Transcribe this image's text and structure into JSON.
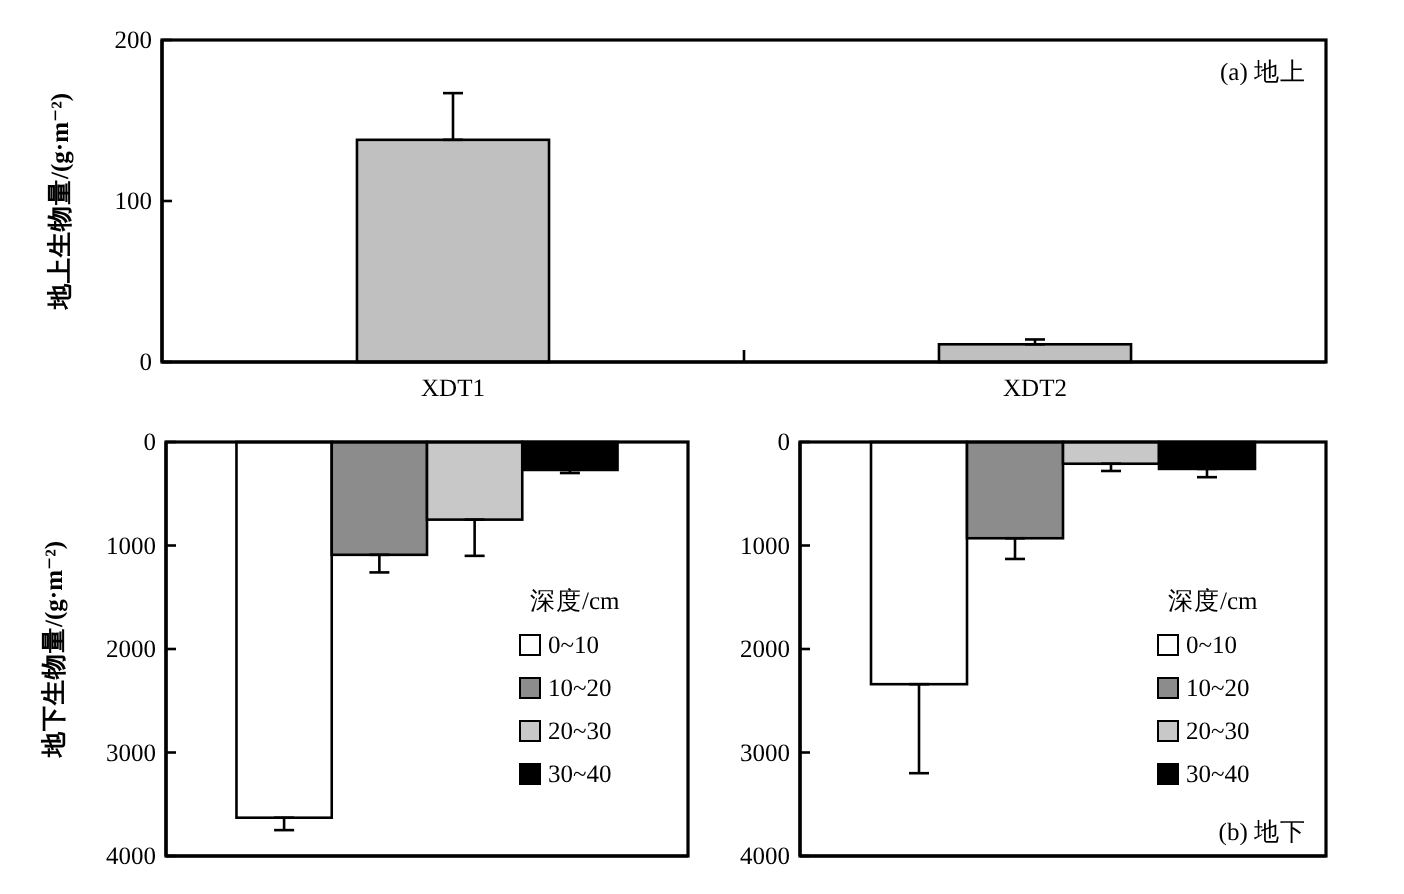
{
  "chart_data": [
    {
      "type": "bar",
      "categories": [
        "XDT1",
        "XDT2"
      ],
      "values": [
        138,
        11
      ],
      "color": "#c0c0c0",
      "errors": [
        [
          138,
          167
        ],
        [
          11,
          14
        ]
      ],
      "ylim": [
        0,
        200
      ],
      "yticks": [
        0,
        100,
        200
      ],
      "ylabel": "地上生物量/(g·m⁻²)",
      "annotations": [
        "(a) 地上"
      ]
    },
    {
      "type": "bar",
      "categories": [
        null
      ],
      "series": [
        {
          "name": "0~10",
          "color": "#ffffff",
          "values": [
            3630
          ],
          "errors": [
            [
              3630,
              3750
            ]
          ]
        },
        {
          "name": "10~20",
          "color": "#8c8c8c",
          "values": [
            1090
          ],
          "errors": [
            [
              1090,
              1260
            ]
          ]
        },
        {
          "name": "20~30",
          "color": "#c8c8c8",
          "values": [
            750
          ],
          "errors": [
            [
              750,
              1100
            ]
          ]
        },
        {
          "name": "30~40",
          "color": "#000000",
          "values": [
            270
          ],
          "errors": [
            [
              270,
              300
            ]
          ]
        }
      ],
      "ylim": [
        4000,
        0
      ],
      "yticks": [
        0,
        1000,
        2000,
        3000,
        4000
      ],
      "ylabel": "地下生物量/(g·m⁻²)",
      "legend": "right",
      "legend_title": "深度/cm",
      "tick_labels": "y"
    },
    {
      "type": "bar",
      "categories": [
        null
      ],
      "series": [
        {
          "name": "0~10",
          "color": "#ffffff",
          "values": [
            2340
          ],
          "errors": [
            [
              2340,
              3200
            ]
          ]
        },
        {
          "name": "10~20",
          "color": "#8c8c8c",
          "values": [
            930
          ],
          "errors": [
            [
              930,
              1130
            ]
          ]
        },
        {
          "name": "20~30",
          "color": "#c8c8c8",
          "values": [
            210
          ],
          "errors": [
            [
              210,
              280
            ]
          ]
        },
        {
          "name": "30~40",
          "color": "#000000",
          "values": [
            260
          ],
          "errors": [
            [
              260,
              340
            ]
          ]
        }
      ],
      "ylim": [
        4000,
        0
      ],
      "yticks": [
        0,
        1000,
        2000,
        3000,
        4000
      ],
      "legend": "right",
      "legend_title": "深度/cm",
      "tick_labels": "y",
      "annotations": [
        "(b) 地下"
      ]
    }
  ]
}
